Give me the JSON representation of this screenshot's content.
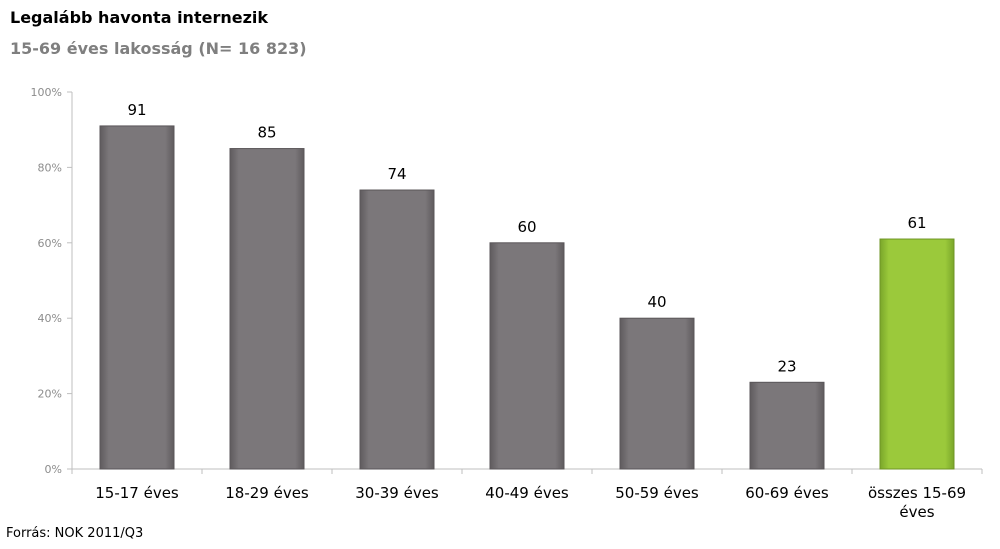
{
  "header": {
    "title": "Legalább havonta internezik",
    "subtitle": "15-69 éves lakosság (N= 16 823)"
  },
  "footer": {
    "source": "Forrás: NOK 2011/Q3"
  },
  "colors": {
    "bar_default": "#7b777a",
    "bar_highlight": "#9bc93b",
    "axis": "#bfbfbf"
  },
  "chart_data": {
    "type": "bar",
    "categories": [
      "15-17 éves",
      "18-29 éves",
      "30-39 éves",
      "40-49 éves",
      "50-59 éves",
      "60-69 éves",
      "összes 15-69 éves"
    ],
    "values": [
      91,
      85,
      74,
      60,
      40,
      23,
      61
    ],
    "highlight_index": 6,
    "title": "Legalább havonta internezik",
    "subtitle": "15-69 éves lakosság (N= 16 823)",
    "ylim": [
      0,
      100
    ],
    "yticks": [
      "0%",
      "20%",
      "40%",
      "60%",
      "80%",
      "100%"
    ],
    "ytick_values": [
      0,
      20,
      40,
      60,
      80,
      100
    ],
    "grid": false,
    "legend": "none"
  }
}
